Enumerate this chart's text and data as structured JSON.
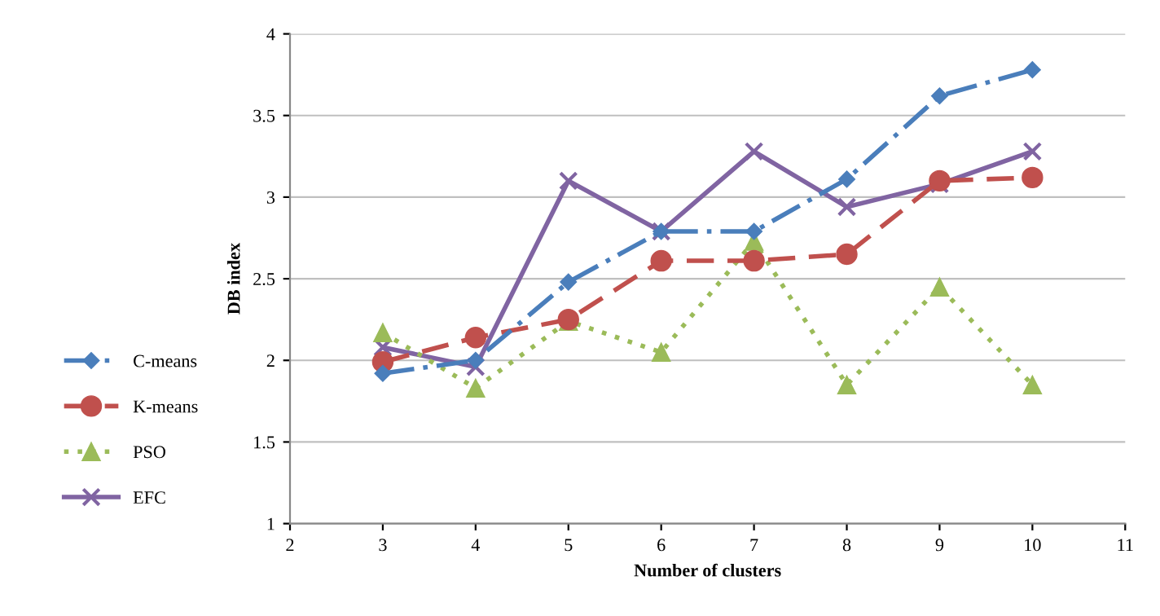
{
  "chart_data": {
    "type": "line",
    "xlabel": "Number of clusters",
    "ylabel": "DB index",
    "x": [
      3,
      4,
      5,
      6,
      7,
      8,
      9,
      10
    ],
    "series": [
      {
        "name": "C-means",
        "color": "#4a7ebb",
        "marker": "diamond",
        "line_style": "dashdot",
        "values": [
          1.92,
          2.0,
          2.48,
          2.79,
          2.79,
          3.11,
          3.62,
          3.78
        ]
      },
      {
        "name": "K-means",
        "color": "#c0504d",
        "marker": "circle",
        "line_style": "dashed",
        "values": [
          1.99,
          2.14,
          2.25,
          2.61,
          2.61,
          2.65,
          3.1,
          3.12
        ]
      },
      {
        "name": "PSO",
        "color": "#9bbb59",
        "marker": "triangle",
        "line_style": "dotted",
        "values": [
          2.17,
          1.83,
          2.24,
          2.05,
          2.73,
          1.85,
          2.45,
          1.85
        ]
      },
      {
        "name": "EFC",
        "color": "#8064a2",
        "marker": "cross",
        "line_style": "solid",
        "values": [
          2.08,
          1.96,
          3.1,
          2.79,
          3.28,
          2.94,
          3.08,
          3.28
        ]
      }
    ],
    "xlim": [
      2,
      11
    ],
    "xticks": [
      2,
      3,
      4,
      5,
      6,
      7,
      8,
      9,
      10,
      11
    ],
    "ylim": [
      1,
      4
    ],
    "yticks": [
      1,
      1.5,
      2,
      2.5,
      3,
      3.5,
      4
    ],
    "grid": "y",
    "legend": "bottom left"
  }
}
